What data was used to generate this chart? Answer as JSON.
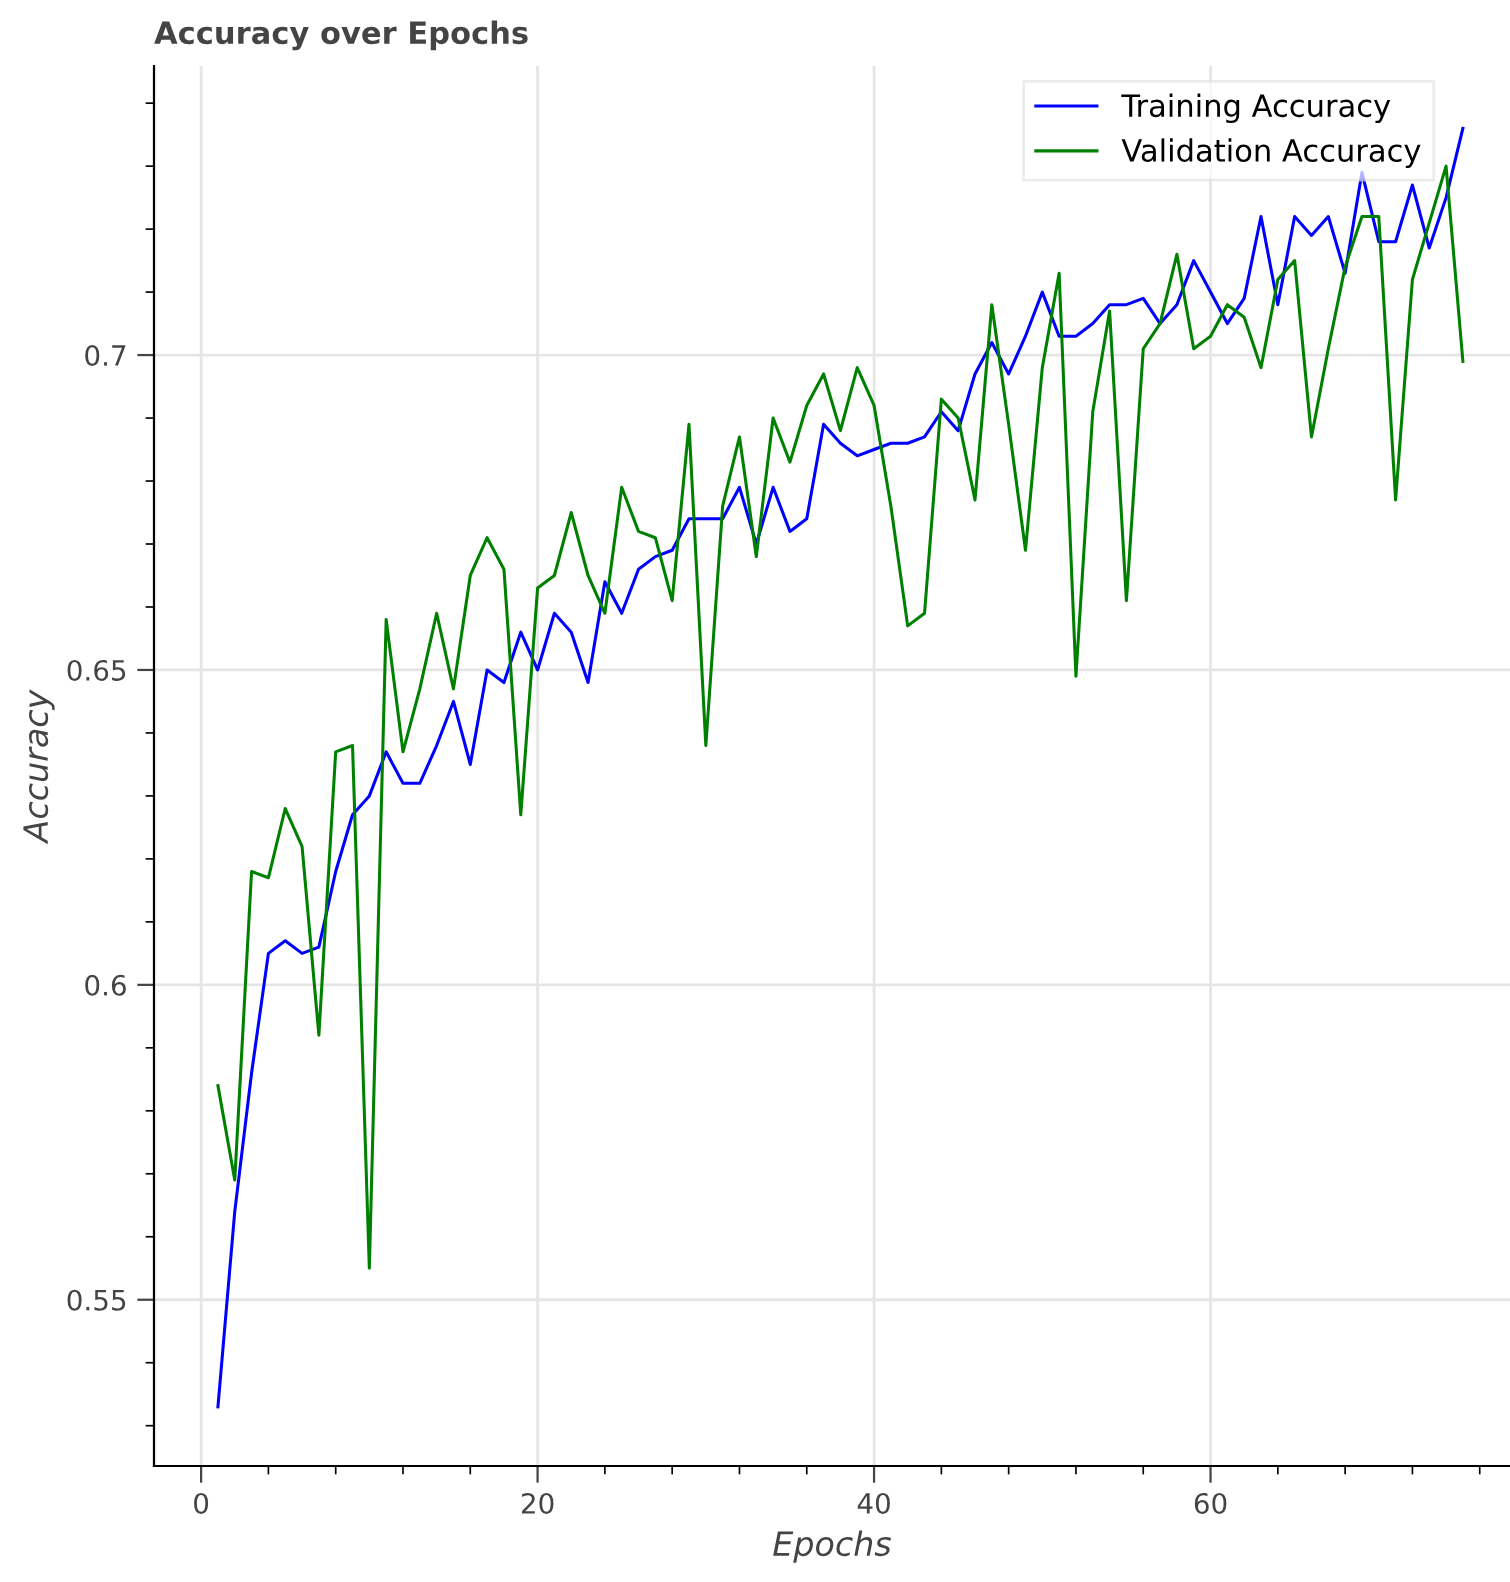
{
  "chart_data": {
    "type": "line",
    "title": "Accuracy over Epochs",
    "xlabel": "Epochs",
    "ylabel": "Accuracy",
    "x": [
      1,
      2,
      3,
      4,
      5,
      6,
      7,
      8,
      9,
      10,
      11,
      12,
      13,
      14,
      15,
      16,
      17,
      18,
      19,
      20,
      21,
      22,
      23,
      24,
      25,
      26,
      27,
      28,
      29,
      30,
      31,
      32,
      33,
      34,
      35,
      36,
      37,
      38,
      39,
      40,
      41,
      42,
      43,
      44,
      45,
      46,
      47,
      48,
      49,
      50,
      51,
      52,
      53,
      54,
      55,
      56,
      57,
      58,
      59,
      60,
      61,
      62,
      63,
      64,
      65,
      66,
      67,
      68,
      69,
      70,
      71,
      72,
      73,
      74,
      75
    ],
    "series": [
      {
        "name": "Training Accuracy",
        "color": "#0000ff",
        "values": [
          0.533,
          0.564,
          0.586,
          0.605,
          0.607,
          0.605,
          0.606,
          0.618,
          0.627,
          0.63,
          0.637,
          0.632,
          0.632,
          0.638,
          0.645,
          0.635,
          0.65,
          0.648,
          0.656,
          0.65,
          0.659,
          0.656,
          0.648,
          0.664,
          0.659,
          0.666,
          0.668,
          0.669,
          0.674,
          0.674,
          0.674,
          0.679,
          0.67,
          0.679,
          0.672,
          0.674,
          0.689,
          0.686,
          0.684,
          0.685,
          0.686,
          0.686,
          0.687,
          0.691,
          0.688,
          0.697,
          0.702,
          0.697,
          0.703,
          0.71,
          0.703,
          0.703,
          0.705,
          0.708,
          0.708,
          0.709,
          0.705,
          0.708,
          0.715,
          0.71,
          0.705,
          0.709,
          0.722,
          0.708,
          0.722,
          0.719,
          0.722,
          0.713,
          0.729,
          0.718,
          0.718,
          0.727,
          0.717,
          0.725,
          0.736
        ]
      },
      {
        "name": "Validation Accuracy",
        "color": "#008000",
        "values": [
          0.584,
          0.569,
          0.618,
          0.617,
          0.628,
          0.622,
          0.592,
          0.637,
          0.638,
          0.555,
          0.658,
          0.637,
          0.647,
          0.659,
          0.647,
          0.665,
          0.671,
          0.666,
          0.627,
          0.663,
          0.665,
          0.675,
          0.665,
          0.659,
          0.679,
          0.672,
          0.671,
          0.661,
          0.689,
          0.638,
          0.676,
          0.687,
          0.668,
          0.69,
          0.683,
          0.692,
          0.697,
          0.688,
          0.698,
          0.692,
          0.676,
          0.657,
          0.659,
          0.693,
          0.69,
          0.677,
          0.708,
          0.689,
          0.669,
          0.698,
          0.713,
          0.649,
          0.691,
          0.707,
          0.661,
          0.701,
          0.705,
          0.716,
          0.701,
          0.703,
          0.708,
          0.706,
          0.698,
          0.712,
          0.715,
          0.687,
          0.701,
          0.714,
          0.722,
          0.722,
          0.677,
          0.712,
          0.721,
          0.73,
          0.699
        ]
      }
    ],
    "xlim": [
      -2.8,
      77.8
    ],
    "ylim": [
      0.5236,
      0.7459
    ],
    "xticks": [
      0,
      20,
      40,
      60
    ],
    "yticks": [
      0.55,
      0.6,
      0.65,
      0.7
    ],
    "grid": true,
    "legend": "top right"
  }
}
